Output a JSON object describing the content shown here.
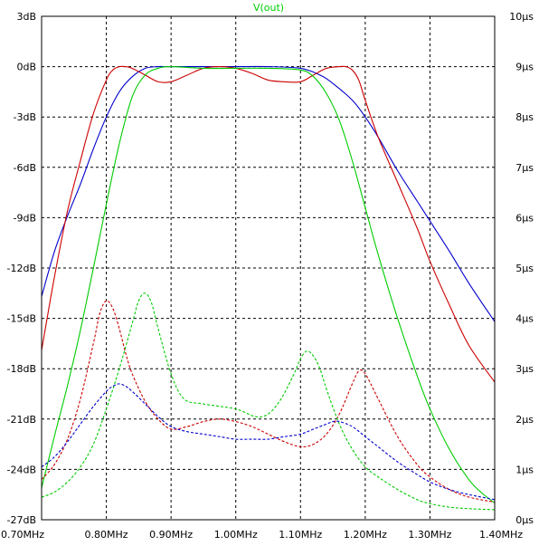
{
  "chart_data": {
    "type": "line",
    "title": "V(out)",
    "title_color": "#00cc00",
    "grid": true,
    "grid_style": "dashed",
    "x_axis": {
      "range": [
        0.7,
        1.4
      ],
      "ticks": [
        0.7,
        0.8,
        0.9,
        1.0,
        1.1,
        1.2,
        1.3,
        1.4
      ],
      "tick_labels": [
        "0.70MHz",
        "0.80MHz",
        "0.90MHz",
        "1.00MHz",
        "1.10MHz",
        "1.20MHz",
        "1.30MHz",
        "1.40MHz"
      ]
    },
    "y_left": {
      "range": [
        -27,
        3
      ],
      "ticks": [
        3,
        0,
        -3,
        -6,
        -9,
        -12,
        -15,
        -18,
        -21,
        -24,
        -27
      ],
      "tick_labels": [
        "3dB",
        "0dB",
        "-3dB",
        "-6dB",
        "-9dB",
        "-12dB",
        "-15dB",
        "-18dB",
        "-21dB",
        "-24dB",
        "-27dB"
      ]
    },
    "y_right": {
      "range": [
        0,
        10
      ],
      "ticks": [
        10,
        9,
        8,
        7,
        6,
        5,
        4,
        3,
        2,
        1,
        0
      ],
      "tick_labels": [
        "10µs",
        "9µs",
        "8µs",
        "7µs",
        "6µs",
        "5µs",
        "4µs",
        "3µs",
        "2µs",
        "1µs",
        "0µs"
      ]
    },
    "series": [
      {
        "color": "#0000cc",
        "axis": "left",
        "dashed": false,
        "x": [
          0.7,
          0.72,
          0.74,
          0.76,
          0.78,
          0.8,
          0.82,
          0.84,
          0.86,
          0.88,
          0.9,
          0.95,
          1.0,
          1.05,
          1.1,
          1.13,
          1.15,
          1.18,
          1.2,
          1.22,
          1.25,
          1.28,
          1.3,
          1.33,
          1.36,
          1.4
        ],
        "y": [
          -13.7,
          -11.0,
          -8.9,
          -7.0,
          -4.9,
          -3.0,
          -1.5,
          -0.6,
          -0.1,
          0.0,
          0.0,
          0.0,
          0.0,
          0.0,
          -0.1,
          -0.5,
          -1.0,
          -2.0,
          -3.0,
          -4.2,
          -6.2,
          -8.0,
          -9.2,
          -11.0,
          -12.9,
          -15.2
        ]
      },
      {
        "color": "#cc0000",
        "axis": "left",
        "dashed": false,
        "x": [
          0.7,
          0.72,
          0.74,
          0.76,
          0.78,
          0.8,
          0.81,
          0.82,
          0.83,
          0.84,
          0.86,
          0.88,
          0.9,
          0.925,
          0.95,
          0.975,
          1.0,
          1.025,
          1.05,
          1.075,
          1.1,
          1.12,
          1.14,
          1.16,
          1.17,
          1.18,
          1.19,
          1.2,
          1.22,
          1.25,
          1.28,
          1.3,
          1.33,
          1.36,
          1.4
        ],
        "y": [
          -16.9,
          -12.5,
          -8.6,
          -5.6,
          -2.8,
          -0.8,
          -0.2,
          0.0,
          0.0,
          -0.1,
          -0.5,
          -0.9,
          -0.9,
          -0.5,
          -0.1,
          0.0,
          -0.1,
          -0.4,
          -0.8,
          -0.9,
          -0.9,
          -0.5,
          -0.1,
          0.0,
          0.0,
          -0.2,
          -0.8,
          -2.0,
          -4.2,
          -6.9,
          -9.6,
          -11.6,
          -14.2,
          -16.6,
          -18.8
        ]
      },
      {
        "color": "#00cc00",
        "axis": "left",
        "dashed": false,
        "x": [
          0.7,
          0.72,
          0.74,
          0.76,
          0.78,
          0.8,
          0.82,
          0.84,
          0.86,
          0.88,
          0.9,
          0.95,
          1.0,
          1.05,
          1.1,
          1.12,
          1.14,
          1.16,
          1.18,
          1.2,
          1.22,
          1.25,
          1.28,
          1.3,
          1.33,
          1.36,
          1.38,
          1.4
        ],
        "y": [
          -25.1,
          -22.0,
          -19.0,
          -15.7,
          -12.0,
          -8.2,
          -4.6,
          -1.8,
          -0.5,
          -0.1,
          0.0,
          -0.1,
          -0.1,
          -0.1,
          -0.2,
          -0.6,
          -1.6,
          -3.2,
          -5.6,
          -8.4,
          -11.2,
          -15.0,
          -18.4,
          -20.4,
          -22.8,
          -24.6,
          -25.4,
          -26.0
        ]
      },
      {
        "color": "#cc0000",
        "axis": "right",
        "dashed": true,
        "x": [
          0.7,
          0.72,
          0.74,
          0.76,
          0.78,
          0.79,
          0.8,
          0.81,
          0.82,
          0.83,
          0.84,
          0.86,
          0.88,
          0.9,
          0.925,
          0.95,
          0.975,
          1.0,
          1.025,
          1.05,
          1.075,
          1.1,
          1.12,
          1.14,
          1.16,
          1.18,
          1.19,
          1.2,
          1.22,
          1.25,
          1.28,
          1.3,
          1.33,
          1.36,
          1.4
        ],
        "y": [
          0.8,
          1.1,
          1.6,
          2.4,
          3.5,
          4.1,
          4.35,
          4.2,
          3.8,
          3.3,
          2.9,
          2.35,
          2.0,
          1.8,
          1.85,
          1.95,
          2.0,
          1.95,
          1.85,
          1.7,
          1.55,
          1.45,
          1.5,
          1.7,
          2.1,
          2.7,
          2.95,
          2.9,
          2.4,
          1.65,
          1.1,
          0.85,
          0.6,
          0.45,
          0.35
        ]
      },
      {
        "color": "#00cc00",
        "axis": "right",
        "dashed": true,
        "x": [
          0.7,
          0.72,
          0.74,
          0.76,
          0.78,
          0.8,
          0.82,
          0.84,
          0.85,
          0.86,
          0.87,
          0.88,
          0.9,
          0.92,
          0.95,
          1.0,
          1.03,
          1.05,
          1.07,
          1.09,
          1.1,
          1.11,
          1.12,
          1.13,
          1.14,
          1.16,
          1.18,
          1.2,
          1.22,
          1.25,
          1.28,
          1.3,
          1.33,
          1.36,
          1.4
        ],
        "y": [
          0.45,
          0.55,
          0.75,
          1.05,
          1.5,
          2.2,
          3.0,
          3.9,
          4.35,
          4.5,
          4.3,
          3.8,
          2.9,
          2.4,
          2.3,
          2.2,
          2.05,
          2.1,
          2.4,
          2.9,
          3.2,
          3.35,
          3.25,
          3.0,
          2.6,
          1.9,
          1.4,
          1.05,
          0.85,
          0.6,
          0.4,
          0.32,
          0.25,
          0.22,
          0.2
        ]
      },
      {
        "color": "#0000cc",
        "axis": "right",
        "dashed": true,
        "x": [
          0.7,
          0.72,
          0.74,
          0.76,
          0.78,
          0.8,
          0.81,
          0.82,
          0.83,
          0.84,
          0.86,
          0.88,
          0.9,
          0.925,
          0.95,
          0.975,
          1.0,
          1.025,
          1.05,
          1.075,
          1.1,
          1.12,
          1.14,
          1.15,
          1.16,
          1.18,
          1.2,
          1.22,
          1.25,
          1.28,
          1.3,
          1.33,
          1.36,
          1.4
        ],
        "y": [
          1.05,
          1.25,
          1.55,
          1.9,
          2.25,
          2.55,
          2.65,
          2.7,
          2.65,
          2.55,
          2.3,
          2.05,
          1.85,
          1.75,
          1.7,
          1.65,
          1.6,
          1.6,
          1.6,
          1.65,
          1.7,
          1.8,
          1.9,
          1.95,
          1.95,
          1.85,
          1.65,
          1.45,
          1.15,
          0.9,
          0.75,
          0.6,
          0.5,
          0.4
        ]
      }
    ]
  }
}
